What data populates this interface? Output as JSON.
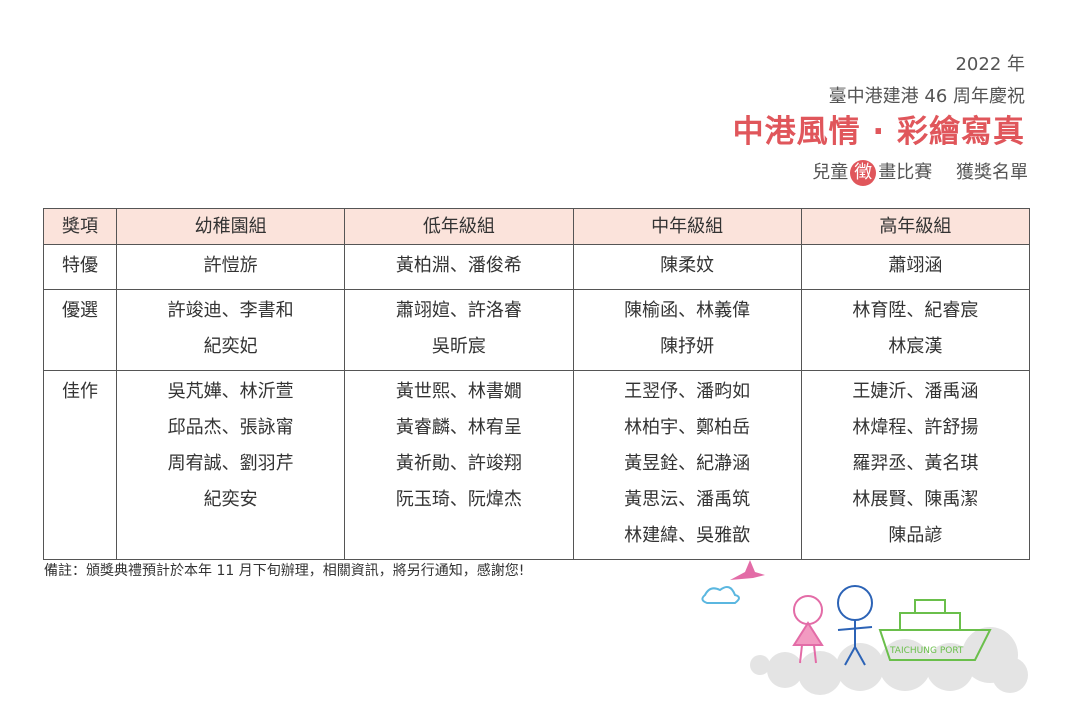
{
  "header": {
    "year": "2022 年",
    "subtitle": "臺中港建港 46 周年慶祝",
    "title": "中港風情 · 彩繪寫真",
    "event_prefix": "兒童",
    "event_badge": "徵",
    "event_suffix": "畫比賽",
    "list_label": "獲獎名單"
  },
  "table": {
    "columns": [
      "獎項",
      "幼稚園組",
      "低年級組",
      "中年級組",
      "高年級組"
    ],
    "rows": [
      {
        "award": "特優",
        "cells": [
          [
            "許愷旂"
          ],
          [
            "黃柏淵、潘俊希"
          ],
          [
            "陳柔妏"
          ],
          [
            "蕭翊涵"
          ]
        ]
      },
      {
        "award": "優選",
        "cells": [
          [
            "許竣迪、李書和",
            "紀奕妃"
          ],
          [
            "蕭翊媗、許洛睿",
            "吳昕宸"
          ],
          [
            "陳榆函、林義偉",
            "陳抒妍"
          ],
          [
            "林育陞、紀睿宸",
            "林宸漢"
          ]
        ]
      },
      {
        "award": "佳作",
        "cells": [
          [
            "吳芃嬅、林沂萱",
            "邱品杰、張詠甯",
            "周宥誠、劉羽芹",
            "紀奕安"
          ],
          [
            "黃世熙、林書嫺",
            "黃睿麟、林宥呈",
            "黃祈勛、許竣翔",
            "阮玉琦、阮煒杰"
          ],
          [
            "王翌伃、潘畇如",
            "林柏宇、鄭柏岳",
            "黃昱銓、紀瀞涵",
            "黃思沄、潘禹筑",
            "林建緯、吳雅歆"
          ],
          [
            "王婕沂、潘禹涵",
            "林煒程、許舒揚",
            "羅羿丞、黃名琪",
            "林展賢、陳禹潔",
            "陳品諺"
          ]
        ]
      }
    ]
  },
  "note": "備註：頒獎典禮預計於本年 11 月下旬辦理，相關資訊，將另行通知，感謝您!",
  "illustration": {
    "label": "TAICHUNG PORT"
  }
}
